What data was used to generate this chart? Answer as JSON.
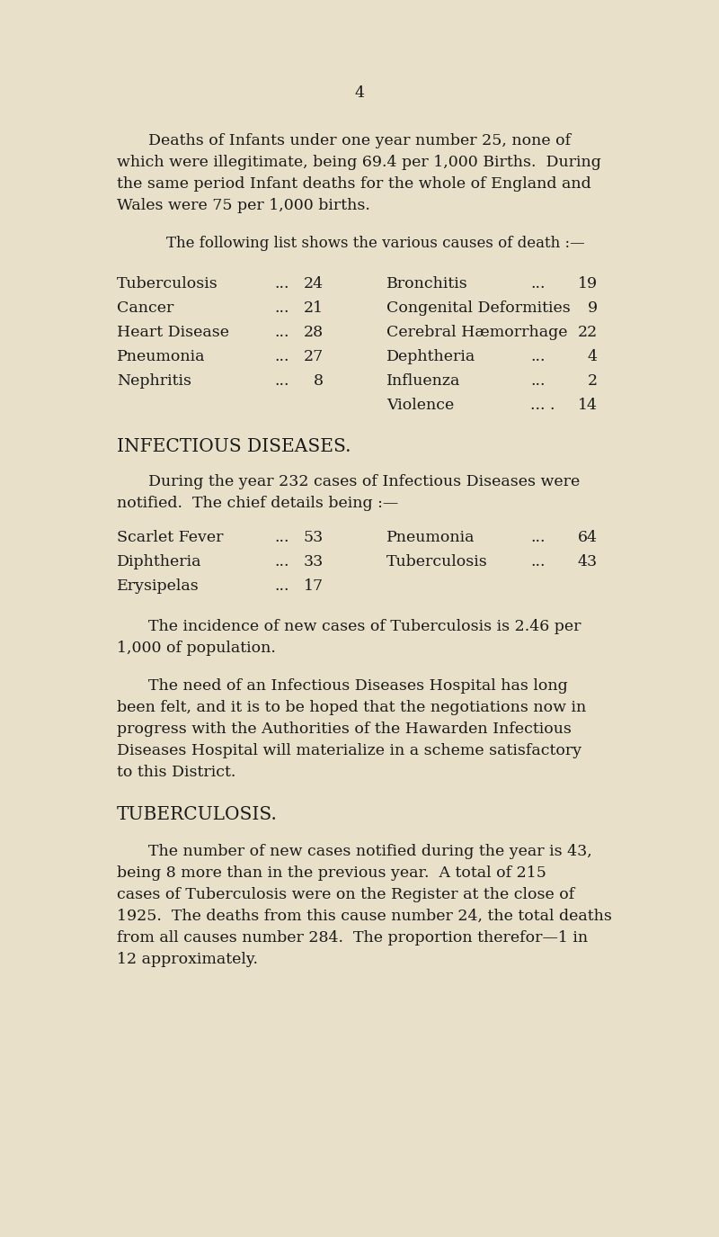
{
  "background_color": "#e8e0c8",
  "text_color": "#1a1a1a",
  "page_number": "4",
  "paragraph1": "Deaths of Infants under one year number 25, none of which were illegitimate, being 69.4 per 1,000 Births.  During the same period Infant deaths for the whole of England and Wales were 75 per 1,000 births.",
  "subheading1": "The following list shows the various causes of death :—",
  "death_table": [
    {
      "left_label": "Tuberculosis",
      "left_dots": "...",
      "left_num": "24",
      "right_label": "Bronchitis",
      "right_dots": "...",
      "right_num": "19"
    },
    {
      "left_label": "Cancer",
      "left_dots": "...",
      "left_num": "21",
      "right_label": "Congenital Deformities",
      "right_dots": "",
      "right_num": "9"
    },
    {
      "left_label": "Heart Disease",
      "left_dots": "...",
      "left_num": "28",
      "right_label": "Cerebral Hæmorrhage",
      "right_dots": "",
      "right_num": "22"
    },
    {
      "left_label": "Pneumonia",
      "left_dots": "...",
      "left_num": "27",
      "right_label": "Dephtheria",
      "right_dots": "...",
      "right_num": "4"
    },
    {
      "left_label": "Nephritis",
      "left_dots": "...",
      "left_num": "8",
      "right_label": "Influenza",
      "right_dots": "...",
      "right_num": "2"
    },
    {
      "left_label": "",
      "left_dots": "",
      "left_num": "",
      "right_label": "Violence",
      "right_dots": "... .",
      "right_num": "14"
    }
  ],
  "section2_heading": "INFECTIOUS DISEASES.",
  "paragraph2_line1": "During the year 232 cases of Infectious Diseases were",
  "paragraph2_line2": "notified.  The chief details being :—",
  "infectious_table": [
    {
      "left_label": "Scarlet Fever",
      "left_dots": "...",
      "left_num": "53",
      "right_label": "Pneumonia",
      "right_dots": "...",
      "right_num": "64"
    },
    {
      "left_label": "Diphtheria",
      "left_dots": "...",
      "left_num": "33",
      "right_label": "Tuberculosis",
      "right_dots": "...",
      "right_num": "43"
    },
    {
      "left_label": "Erysipelas",
      "left_dots": "...",
      "left_num": "17",
      "right_label": "",
      "right_dots": "",
      "right_num": ""
    }
  ],
  "paragraph3_line1": "The incidence of new cases of Tuberculosis is 2.46 per",
  "paragraph3_line2": "1,000 of population.",
  "paragraph4_line1": "The need of an Infectious Diseases Hospital has long",
  "paragraph4_line2": "been felt, and it is to be hoped that the negotiations now in",
  "paragraph4_line3": "progress with the Authorities of the Hawarden Infectious",
  "paragraph4_line4": "Diseases Hospital will materialize in a scheme satisfactory",
  "paragraph4_line5": "to this District.",
  "section3_heading": "TUBERCULOSIS.",
  "paragraph5_line1": "The number of new cases notified during the year is 43,",
  "paragraph5_line2": "being 8 more than in the previous year.  A total of 215",
  "paragraph5_line3": "cases of Tuberculosis were on the Register at the close of",
  "paragraph5_line4": "1925.  The deaths from this cause number 24, the total deaths",
  "paragraph5_line5": "from all causes number 284.  The proportion therefor—1 in",
  "paragraph5_line6": "12 approximately.",
  "font_size_body": 12.5,
  "font_size_subheading": 12.0,
  "font_size_heading": 14.5,
  "font_size_page_num": 12.5
}
